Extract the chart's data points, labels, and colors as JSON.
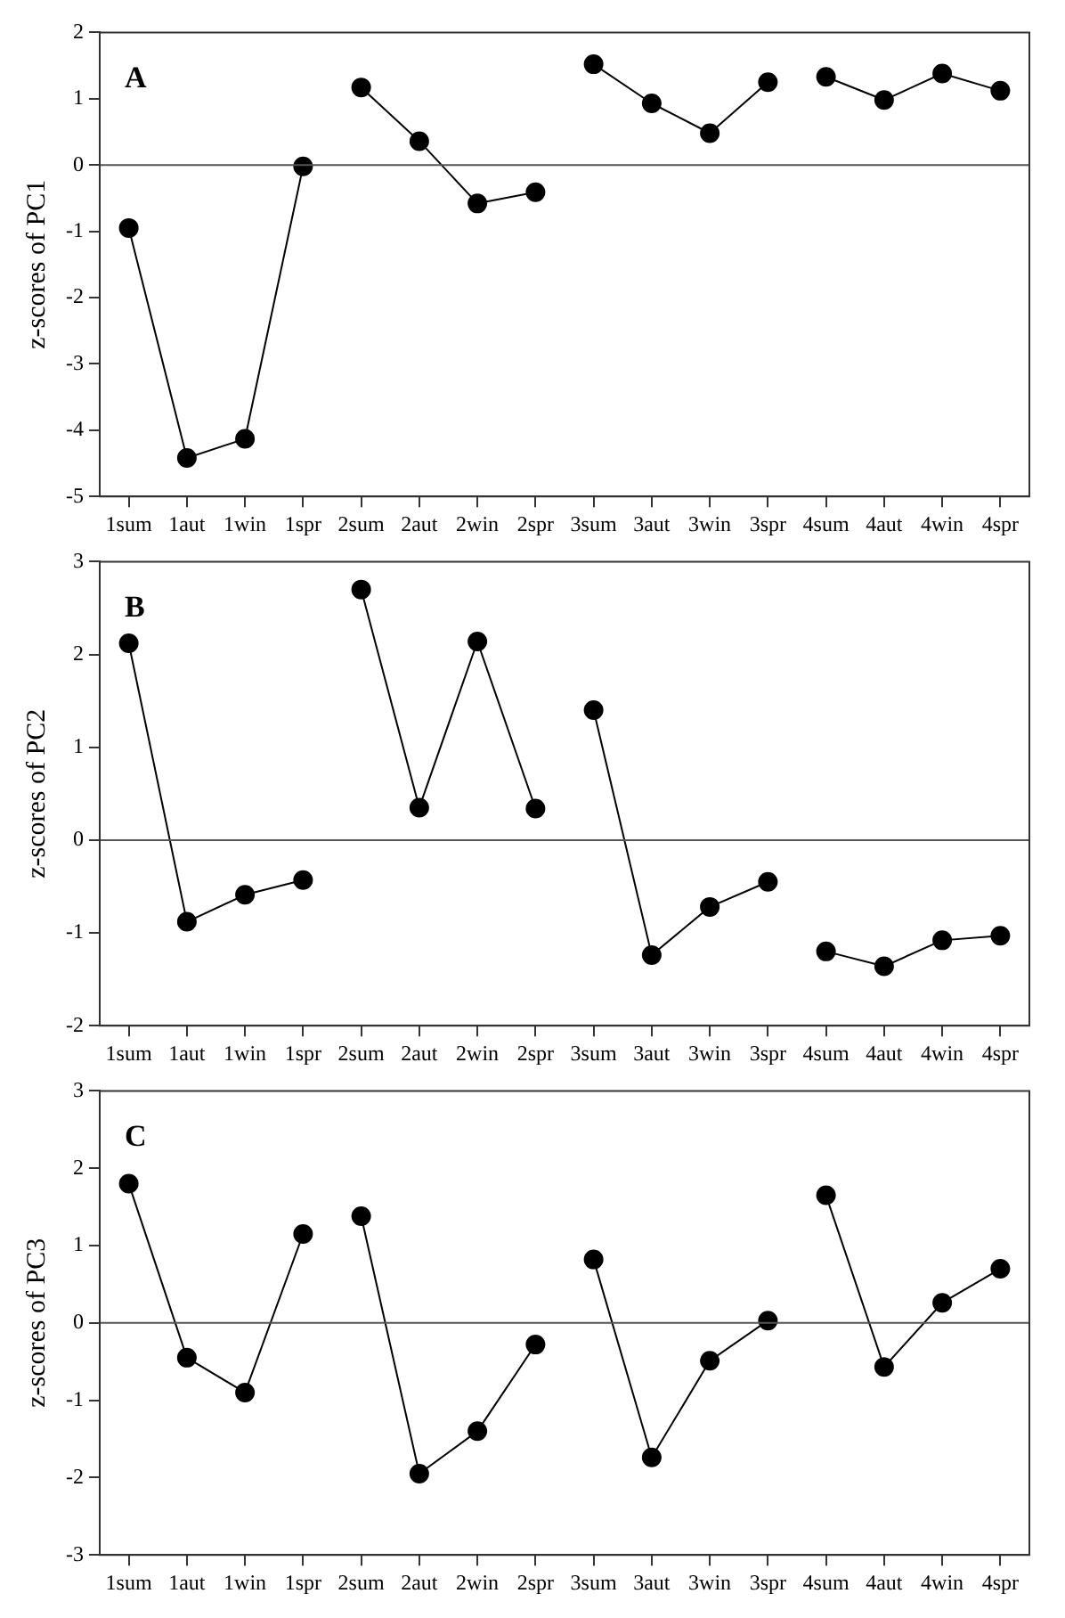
{
  "chart_data": [
    {
      "type": "line",
      "ylabel": "z-scores of PC1",
      "annotations": [
        "A"
      ],
      "categories": [
        "1sum",
        "1aut",
        "1win",
        "1spr",
        "2sum",
        "2aut",
        "2win",
        "2spr",
        "3sum",
        "3aut",
        "3win",
        "3spr",
        "4sum",
        "4aut",
        "4win",
        "4spr"
      ],
      "ylim": [
        -5,
        2
      ],
      "yticks": [
        -5,
        -4,
        -3,
        -2,
        -1,
        0,
        1,
        2
      ],
      "grid": false,
      "marker": "circle",
      "line_style": "solid",
      "ref_lines": [
        {
          "axis": "y",
          "value": 0,
          "color": "#555555"
        }
      ],
      "series": [
        {
          "color": "#000000",
          "values": [
            -0.95,
            -4.42,
            -4.13,
            -0.02,
            null,
            null,
            null,
            null,
            null,
            null,
            null,
            null,
            null,
            null,
            null,
            null
          ]
        },
        {
          "color": "#000000",
          "values": [
            null,
            null,
            null,
            null,
            1.17,
            0.36,
            -0.58,
            -0.41,
            null,
            null,
            null,
            null,
            null,
            null,
            null,
            null
          ]
        },
        {
          "color": "#000000",
          "values": [
            null,
            null,
            null,
            null,
            null,
            null,
            null,
            null,
            1.52,
            0.93,
            0.48,
            1.25,
            null,
            null,
            null,
            null
          ]
        },
        {
          "color": "#000000",
          "values": [
            null,
            null,
            null,
            null,
            null,
            null,
            null,
            null,
            null,
            null,
            null,
            null,
            1.33,
            0.98,
            1.38,
            1.12
          ]
        }
      ]
    },
    {
      "type": "line",
      "ylabel": "z-scores of PC2",
      "annotations": [
        "B"
      ],
      "categories": [
        "1sum",
        "1aut",
        "1win",
        "1spr",
        "2sum",
        "2aut",
        "2win",
        "2spr",
        "3sum",
        "3aut",
        "3win",
        "3spr",
        "4sum",
        "4aut",
        "4win",
        "4spr"
      ],
      "ylim": [
        -2,
        3
      ],
      "yticks": [
        -2,
        -1,
        0,
        1,
        2,
        3
      ],
      "grid": false,
      "marker": "circle",
      "line_style": "solid",
      "ref_lines": [
        {
          "axis": "y",
          "value": 0,
          "color": "#555555"
        }
      ],
      "series": [
        {
          "color": "#000000",
          "values": [
            2.12,
            -0.88,
            -0.59,
            -0.43,
            null,
            null,
            null,
            null,
            null,
            null,
            null,
            null,
            null,
            null,
            null,
            null
          ]
        },
        {
          "color": "#000000",
          "values": [
            null,
            null,
            null,
            null,
            2.7,
            0.35,
            2.14,
            0.34,
            null,
            null,
            null,
            null,
            null,
            null,
            null,
            null
          ]
        },
        {
          "color": "#000000",
          "values": [
            null,
            null,
            null,
            null,
            null,
            null,
            null,
            null,
            1.4,
            -1.24,
            -0.72,
            -0.45,
            null,
            null,
            null,
            null
          ]
        },
        {
          "color": "#000000",
          "values": [
            null,
            null,
            null,
            null,
            null,
            null,
            null,
            null,
            null,
            null,
            null,
            null,
            -1.2,
            -1.36,
            -1.08,
            -1.03
          ]
        }
      ]
    },
    {
      "type": "line",
      "ylabel": "z-scores of PC3",
      "annotations": [
        "C"
      ],
      "categories": [
        "1sum",
        "1aut",
        "1win",
        "1spr",
        "2sum",
        "2aut",
        "2win",
        "2spr",
        "3sum",
        "3aut",
        "3win",
        "3spr",
        "4sum",
        "4aut",
        "4win",
        "4spr"
      ],
      "ylim": [
        -3,
        3
      ],
      "yticks": [
        -3,
        -2,
        -1,
        0,
        1,
        2,
        3
      ],
      "grid": false,
      "marker": "circle",
      "line_style": "solid",
      "ref_lines": [
        {
          "axis": "y",
          "value": 0,
          "color": "#555555"
        }
      ],
      "series": [
        {
          "color": "#000000",
          "values": [
            1.8,
            -0.45,
            -0.9,
            1.15,
            null,
            null,
            null,
            null,
            null,
            null,
            null,
            null,
            null,
            null,
            null,
            null
          ]
        },
        {
          "color": "#000000",
          "values": [
            null,
            null,
            null,
            null,
            1.38,
            -1.95,
            -1.4,
            -0.28,
            null,
            null,
            null,
            null,
            null,
            null,
            null,
            null
          ]
        },
        {
          "color": "#000000",
          "values": [
            null,
            null,
            null,
            null,
            null,
            null,
            null,
            null,
            0.82,
            -1.74,
            -0.49,
            0.03,
            null,
            null,
            null,
            null
          ]
        },
        {
          "color": "#000000",
          "values": [
            null,
            null,
            null,
            null,
            null,
            null,
            null,
            null,
            null,
            null,
            null,
            null,
            1.65,
            -0.57,
            0.26,
            0.7
          ]
        }
      ]
    }
  ]
}
